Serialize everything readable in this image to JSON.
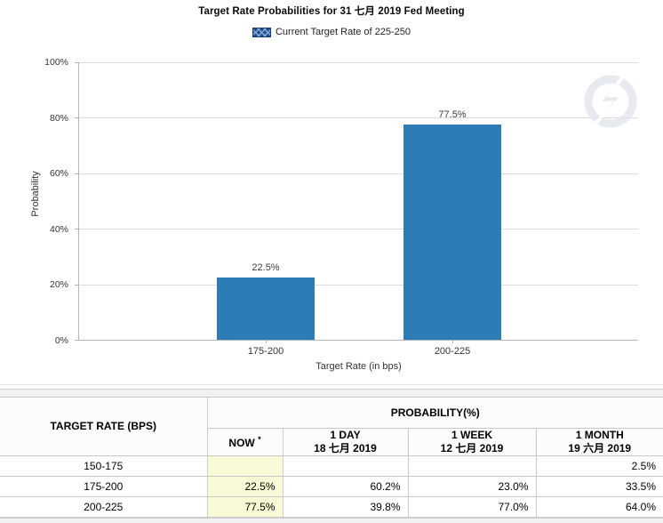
{
  "chart": {
    "title": "Target Rate Probabilities for 31 七月 2019 Fed Meeting",
    "legend_label": "Current Target Rate of 225-250",
    "legend_swatch_bg": "#1f4e8c",
    "legend_swatch_line": "#86aede"
  },
  "chart_data": {
    "type": "bar",
    "title": "Target Rate Probabilities for 31 七月 2019 Fed Meeting",
    "categories": [
      "175-200",
      "200-225"
    ],
    "values": [
      22.5,
      77.5
    ],
    "value_labels": [
      "22.5%",
      "77.5%"
    ],
    "xlabel": "Target Rate (in bps)",
    "ylabel": "Probability",
    "ylim": [
      0,
      100
    ],
    "yticks": [
      "0%",
      "20%",
      "40%",
      "60%",
      "80%",
      "100%"
    ],
    "grid": true,
    "legend_position": "top",
    "legend_entries": [
      "Current Target Rate of 225-250"
    ],
    "bar_color": "#2d7cb5"
  },
  "table": {
    "row_header": "TARGET RATE (BPS)",
    "group_header": "PROBABILITY(%)",
    "columns": [
      {
        "label": "NOW",
        "superscript": "*",
        "date": ""
      },
      {
        "label": "1 DAY",
        "date": "18 七月 2019"
      },
      {
        "label": "1 WEEK",
        "date": "12 七月 2019"
      },
      {
        "label": "1 MONTH",
        "date": "19 六月 2019"
      }
    ],
    "rows": [
      {
        "target_rate": "150-175",
        "now": "",
        "day": "",
        "week": "",
        "month": "2.5%"
      },
      {
        "target_rate": "175-200",
        "now": "22.5%",
        "day": "60.2%",
        "week": "23.0%",
        "month": "33.5%"
      },
      {
        "target_rate": "200-225",
        "now": "77.5%",
        "day": "39.8%",
        "week": "77.0%",
        "month": "64.0%"
      }
    ],
    "now_column_bg": "#f9f9d5"
  }
}
